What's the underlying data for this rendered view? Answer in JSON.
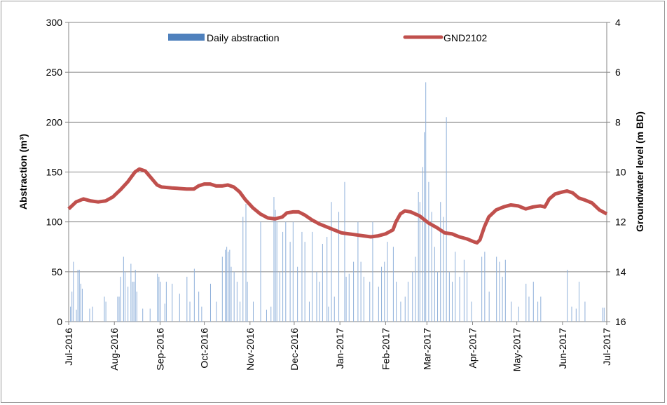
{
  "chart_data": {
    "type": "bar-line",
    "y_label": "Abstraction (m³)",
    "y2_label": "Groundwater level (m BD)",
    "xlim": [
      0,
      365
    ],
    "xticks": [
      {
        "value": 0,
        "label": "Jul-2016"
      },
      {
        "value": 31,
        "label": "Aug-2016"
      },
      {
        "value": 62,
        "label": "Sep-2016"
      },
      {
        "value": 92,
        "label": "Oct-2016"
      },
      {
        "value": 123,
        "label": "Nov-2016"
      },
      {
        "value": 153,
        "label": "Dec-2016"
      },
      {
        "value": 184,
        "label": "Jan-2017"
      },
      {
        "value": 215,
        "label": "Feb-2017"
      },
      {
        "value": 243,
        "label": "Mar-2017"
      },
      {
        "value": 274,
        "label": "Apr-2017"
      },
      {
        "value": 304,
        "label": "May-2017"
      },
      {
        "value": 335,
        "label": "Jun-2017"
      },
      {
        "value": 365,
        "label": "Jul-2017"
      }
    ],
    "ylim": [
      0,
      300
    ],
    "yticks": [
      0,
      50,
      100,
      150,
      200,
      250,
      300
    ],
    "y2lim": [
      16,
      4
    ],
    "y2ticks": [
      4,
      6,
      8,
      10,
      12,
      14,
      16
    ],
    "grid": true,
    "legend": "top",
    "series": [
      {
        "name": "Daily abstraction",
        "type": "bar",
        "color": "#8fb0da",
        "x": [
          1,
          2,
          3,
          5,
          6,
          7,
          8,
          9,
          14,
          16,
          24,
          25,
          33,
          34,
          35,
          37,
          38,
          40,
          42,
          43,
          44,
          45,
          46,
          50,
          55,
          60,
          61,
          62,
          65,
          66,
          70,
          75,
          80,
          82,
          85,
          88,
          90,
          96,
          100,
          104,
          106,
          107,
          108,
          109,
          110,
          112,
          114,
          116,
          118,
          120,
          121,
          125,
          130,
          134,
          137,
          139,
          140,
          141,
          143,
          145,
          147,
          150,
          152,
          155,
          158,
          160,
          163,
          165,
          168,
          170,
          172,
          175,
          176,
          178,
          180,
          183,
          187,
          188,
          190,
          193,
          196,
          198,
          200,
          204,
          206,
          210,
          212,
          214,
          216,
          220,
          222,
          225,
          228,
          230,
          233,
          235,
          237,
          238,
          240,
          241,
          242,
          244,
          246,
          248,
          250,
          252,
          254,
          256,
          258,
          260,
          262,
          265,
          268,
          270,
          273,
          280,
          282,
          285,
          290,
          292,
          294,
          296,
          300,
          305,
          310,
          312,
          315,
          318,
          320,
          338,
          341,
          344,
          346,
          350,
          362,
          363
        ],
        "values": [
          15,
          30,
          60,
          12,
          52,
          52,
          38,
          33,
          13,
          15,
          25,
          20,
          25,
          25,
          45,
          65,
          50,
          35,
          58,
          40,
          40,
          52,
          30,
          13,
          13,
          48,
          45,
          40,
          18,
          40,
          38,
          28,
          45,
          20,
          53,
          30,
          15,
          38,
          20,
          65,
          72,
          75,
          70,
          72,
          55,
          50,
          40,
          20,
          105,
          118,
          40,
          20,
          100,
          12,
          15,
          125,
          112,
          100,
          50,
          90,
          100,
          80,
          100,
          55,
          90,
          80,
          20,
          90,
          50,
          40,
          78,
          85,
          15,
          120,
          25,
          110,
          140,
          45,
          48,
          60,
          100,
          60,
          45,
          40,
          100,
          35,
          55,
          60,
          80,
          75,
          40,
          20,
          25,
          40,
          50,
          65,
          130,
          120,
          155,
          190,
          240,
          140,
          110,
          75,
          50,
          120,
          105,
          205,
          50,
          40,
          70,
          45,
          62,
          50,
          20,
          65,
          70,
          30,
          65,
          60,
          45,
          62,
          20,
          15,
          38,
          25,
          40,
          20,
          25,
          52,
          15,
          13,
          40,
          20,
          14,
          14
        ]
      },
      {
        "name": "GND2102",
        "type": "line",
        "axis": "y2",
        "color": "#c0504d",
        "x": [
          0,
          5,
          10,
          15,
          20,
          25,
          30,
          35,
          40,
          45,
          48,
          52,
          56,
          60,
          63,
          70,
          80,
          85,
          88,
          92,
          96,
          100,
          104,
          108,
          112,
          116,
          120,
          125,
          130,
          135,
          140,
          145,
          148,
          152,
          156,
          160,
          165,
          170,
          175,
          180,
          185,
          190,
          195,
          200,
          205,
          210,
          215,
          220,
          222,
          225,
          228,
          232,
          238,
          244,
          250,
          255,
          260,
          265,
          270,
          275,
          277,
          279,
          282,
          285,
          290,
          295,
          300,
          305,
          310,
          315,
          320,
          323,
          326,
          330,
          335,
          338,
          342,
          346,
          350,
          355,
          360,
          365
        ],
        "values": [
          11.48,
          11.2,
          11.08,
          11.16,
          11.2,
          11.16,
          11,
          10.72,
          10.4,
          10,
          9.88,
          9.96,
          10.24,
          10.52,
          10.6,
          10.64,
          10.68,
          10.68,
          10.56,
          10.48,
          10.48,
          10.56,
          10.56,
          10.52,
          10.6,
          10.8,
          11.12,
          11.44,
          11.68,
          11.84,
          11.88,
          11.8,
          11.64,
          11.6,
          11.6,
          11.72,
          11.92,
          12.08,
          12.2,
          12.32,
          12.44,
          12.48,
          12.52,
          12.56,
          12.6,
          12.56,
          12.48,
          12.32,
          12,
          11.68,
          11.56,
          11.6,
          11.76,
          12.04,
          12.24,
          12.44,
          12.48,
          12.6,
          12.68,
          12.8,
          12.84,
          12.72,
          12.2,
          11.8,
          11.52,
          11.4,
          11.32,
          11.36,
          11.48,
          11.4,
          11.36,
          11.4,
          11.08,
          10.88,
          10.8,
          10.76,
          10.84,
          11.04,
          11.12,
          11.24,
          11.52,
          11.68
        ]
      }
    ]
  }
}
